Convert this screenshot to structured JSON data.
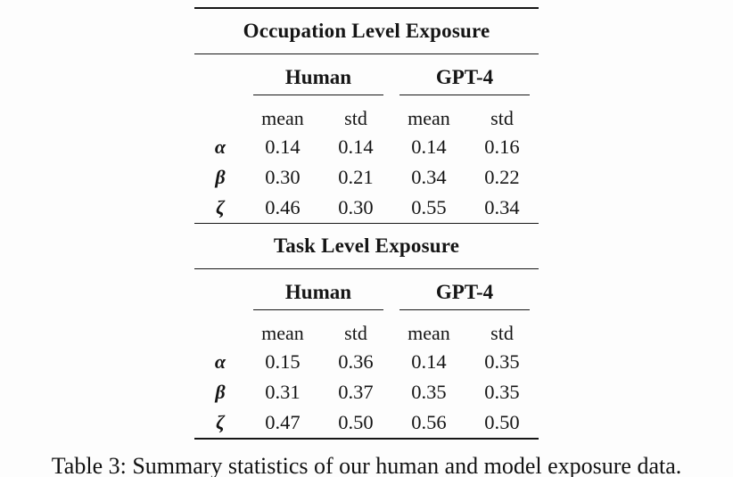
{
  "caption": "Table 3: Summary statistics of our human and model exposure data.",
  "table": {
    "sections": [
      {
        "title": "Occupation Level Exposure",
        "group_headers": [
          {
            "label": "Human"
          },
          {
            "label": "GPT-4"
          }
        ],
        "stat_headers": [
          "mean",
          "std",
          "mean",
          "std"
        ],
        "rows": [
          {
            "label": "α",
            "values": [
              "0.14",
              "0.14",
              "0.14",
              "0.16"
            ]
          },
          {
            "label": "β",
            "values": [
              "0.30",
              "0.21",
              "0.34",
              "0.22"
            ]
          },
          {
            "label": "ζ",
            "values": [
              "0.46",
              "0.30",
              "0.55",
              "0.34"
            ]
          }
        ]
      },
      {
        "title": "Task Level Exposure",
        "group_headers": [
          {
            "label": "Human"
          },
          {
            "label": "GPT-4"
          }
        ],
        "stat_headers": [
          "mean",
          "std",
          "mean",
          "std"
        ],
        "rows": [
          {
            "label": "α",
            "values": [
              "0.15",
              "0.36",
              "0.14",
              "0.35"
            ]
          },
          {
            "label": "β",
            "values": [
              "0.31",
              "0.37",
              "0.35",
              "0.35"
            ]
          },
          {
            "label": "ζ",
            "values": [
              "0.47",
              "0.50",
              "0.56",
              "0.50"
            ]
          }
        ]
      }
    ]
  }
}
